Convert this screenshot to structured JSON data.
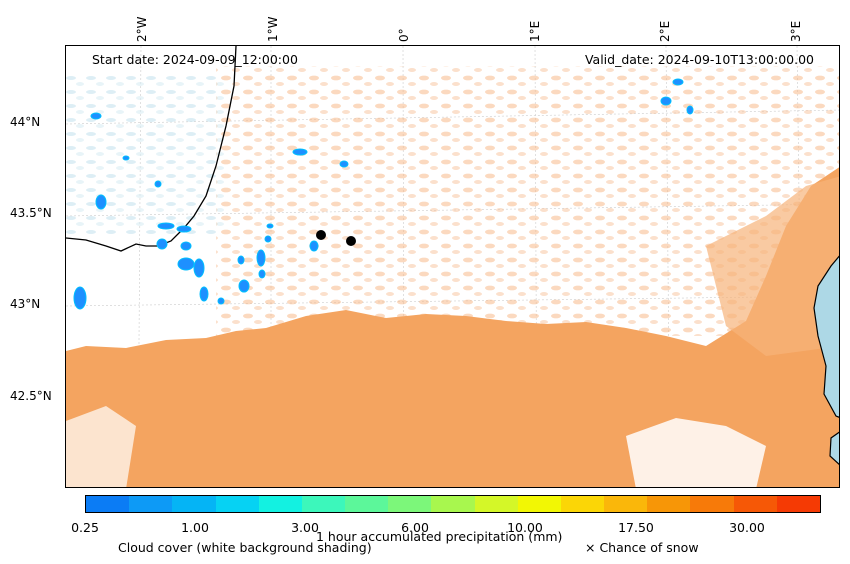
{
  "map": {
    "start_date": "Start date: 2024-09-09_12:00:00",
    "valid_date": "Valid_date: 2024-09-10T13:00:00.00",
    "lon_labels": [
      "2°W",
      "1°W",
      "0°",
      "1°E",
      "2°E",
      "3°E"
    ],
    "lat_labels": [
      "44°N",
      "43.5°N",
      "43°N",
      "42.5°N"
    ],
    "markers": [
      "location-point-1",
      "location-point-2"
    ],
    "colors": {
      "cloud_cover": "#f4a460",
      "cloud_light": "#f8c49a",
      "sea": "#add8e6",
      "precip_blue": "#1e90ff",
      "precip_cyan": "#00bfff",
      "border": "#000000"
    }
  },
  "colorbar": {
    "tick_labels": [
      "0.25",
      "1.00",
      "3.00",
      "6.00",
      "10.00",
      "17.50",
      "30.00"
    ],
    "colors": [
      "#0b7cf5",
      "#0d9af6",
      "#05b4f5",
      "#06d2f3",
      "#13f1e1",
      "#3cf7bb",
      "#5cf79a",
      "#7cf77a",
      "#a8f74e",
      "#d4f728",
      "#f2f704",
      "#fbd606",
      "#fab70a",
      "#f79607",
      "#f77a09",
      "#f65806",
      "#f53a04"
    ],
    "label": "1 hour accumulated precipitation (mm)"
  },
  "legend": {
    "cloud_cover": "Cloud cover (white background shading)",
    "snow": "× Chance of snow"
  }
}
